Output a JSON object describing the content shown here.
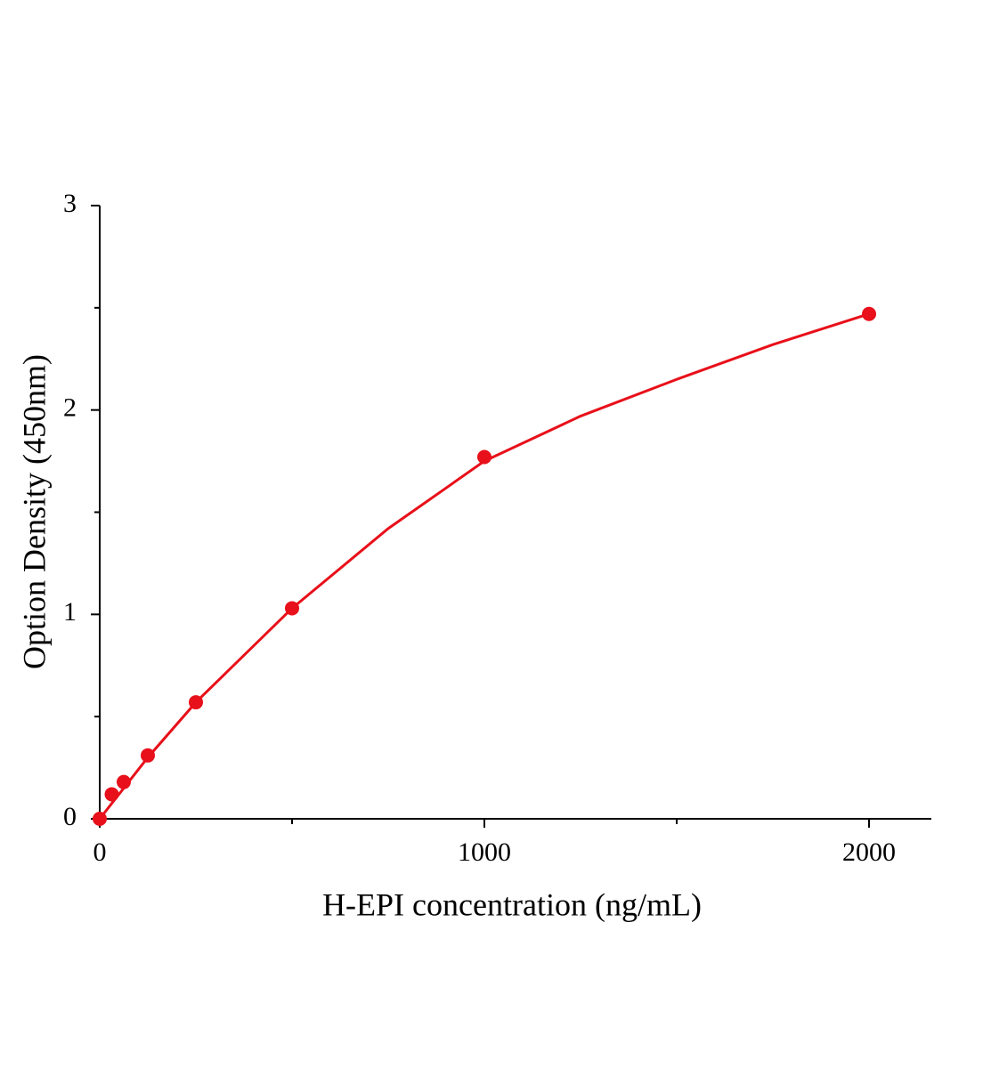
{
  "chart_data": {
    "type": "scatter",
    "x_label": "H-EPI concentration (ng/mL)",
    "y_label": "Option Density (450nm)",
    "xlim": [
      0,
      2162
    ],
    "ylim": [
      0,
      3
    ],
    "xticks": [
      0,
      1000,
      2000
    ],
    "yticks": [
      0,
      1,
      2,
      3
    ],
    "xminorticks": [
      500,
      1500
    ],
    "yminorticks": [
      0.5,
      1.5,
      2.5
    ],
    "series": [
      {
        "type": "scatter",
        "color": "#e8101a",
        "x": [
          0,
          31.25,
          62.5,
          125,
          250,
          500,
          1000,
          2000
        ],
        "values": [
          0,
          0.12,
          0.18,
          0.31,
          0.57,
          1.03,
          1.77,
          2.47
        ]
      },
      {
        "type": "line",
        "color": "#e8101a",
        "x": [
          0,
          125,
          250,
          500,
          750,
          1000,
          1250,
          1500,
          1750,
          2000
        ],
        "values": [
          0,
          0.3,
          0.57,
          1.03,
          1.42,
          1.75,
          1.97,
          2.15,
          2.32,
          2.47
        ]
      }
    ]
  }
}
